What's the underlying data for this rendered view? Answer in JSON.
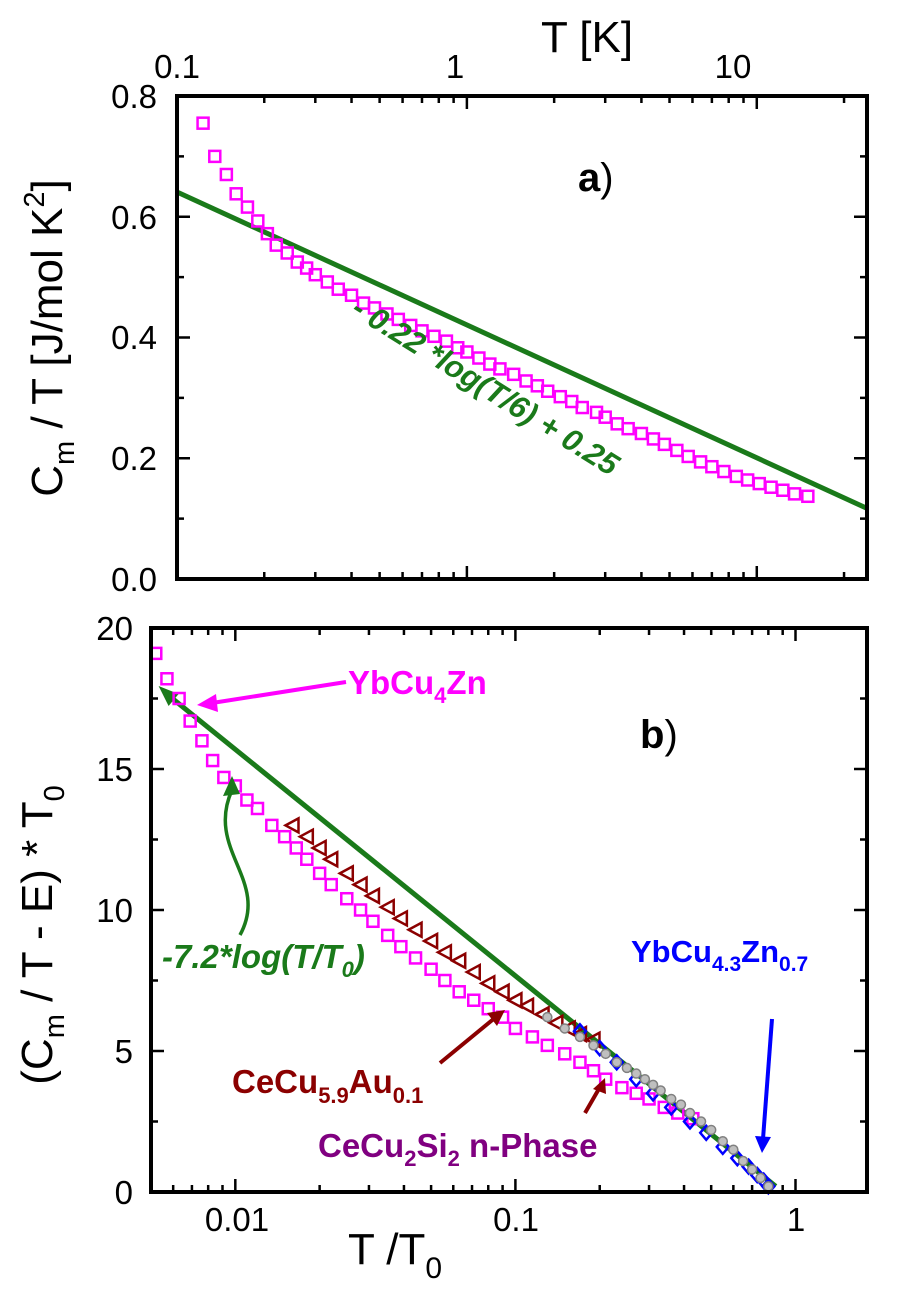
{
  "chart_data": [
    {
      "panel": "a",
      "type": "scatter",
      "panel_label": "a",
      "x_axis": {
        "label": "T [K]",
        "scale": "log",
        "range": [
          0.1,
          24
        ],
        "position": "top",
        "tick_labels": [
          "0.1",
          "1",
          "10"
        ],
        "ticks": [
          0.1,
          1,
          10
        ]
      },
      "y_axis": {
        "label_main": "C",
        "label_sub": "m",
        "label_rest": " / T [J/mol K",
        "label_sup": "2",
        "label_end": "]",
        "range": [
          0.0,
          0.8
        ],
        "ticks": [
          0.0,
          0.2,
          0.4,
          0.6,
          0.8
        ],
        "tick_labels": [
          "0.0",
          "0.2",
          "0.4",
          "0.6",
          "0.8"
        ]
      },
      "series": [
        {
          "name": "YbCu4Zn",
          "marker": "square",
          "color": "#ff00ff",
          "x": [
            0.123,
            0.135,
            0.148,
            0.16,
            0.175,
            0.19,
            0.205,
            0.22,
            0.24,
            0.26,
            0.28,
            0.3,
            0.33,
            0.36,
            0.4,
            0.44,
            0.48,
            0.53,
            0.58,
            0.64,
            0.7,
            0.77,
            0.85,
            0.93,
            1.0,
            1.1,
            1.2,
            1.3,
            1.45,
            1.6,
            1.75,
            1.9,
            2.1,
            2.3,
            2.5,
            2.8,
            3.0,
            3.3,
            3.6,
            4.0,
            4.4,
            4.8,
            5.3,
            5.8,
            6.4,
            7.0,
            7.7,
            8.5,
            9.3,
            10.2,
            11.2,
            12.3,
            13.5,
            15.0
          ],
          "y": [
            0.755,
            0.7,
            0.67,
            0.638,
            0.616,
            0.593,
            0.572,
            0.553,
            0.54,
            0.525,
            0.515,
            0.504,
            0.492,
            0.48,
            0.47,
            0.457,
            0.449,
            0.439,
            0.43,
            0.42,
            0.411,
            0.402,
            0.394,
            0.383,
            0.376,
            0.366,
            0.356,
            0.348,
            0.339,
            0.328,
            0.32,
            0.311,
            0.302,
            0.294,
            0.284,
            0.276,
            0.268,
            0.257,
            0.249,
            0.241,
            0.232,
            0.223,
            0.213,
            0.203,
            0.194,
            0.186,
            0.178,
            0.17,
            0.164,
            0.158,
            0.152,
            0.147,
            0.141,
            0.137
          ]
        }
      ],
      "fit": {
        "label": "- 0.22 *log(T/6) + 0.25",
        "color": "#1a7a1a",
        "x": [
          0.1,
          24
        ],
        "y": [
          0.641,
          0.117
        ]
      }
    },
    {
      "panel": "b",
      "type": "scatter",
      "panel_label": "b",
      "x_axis": {
        "label_main": "T /T",
        "label_sub": "0",
        "scale": "log",
        "range": [
          0.005,
          1.8
        ],
        "tick_labels": [
          "0.01",
          "0.1",
          "1"
        ],
        "ticks": [
          0.01,
          0.1,
          1
        ]
      },
      "y_axis": {
        "label_a": "(C",
        "label_a_sub": "m",
        "label_b": " / T - E) * T",
        "label_b_sub": "0",
        "range": [
          0,
          20
        ],
        "ticks": [
          0,
          5,
          10,
          15,
          20
        ],
        "tick_labels": [
          "0",
          "5",
          "10",
          "15",
          "20"
        ]
      },
      "series": [
        {
          "name": "YbCu4Zn",
          "label_main": "YbCu",
          "label_sub": "4",
          "label_end": "Zn",
          "marker": "square",
          "color": "#ff00ff",
          "x": [
            0.0052,
            0.0057,
            0.0063,
            0.0069,
            0.0076,
            0.0083,
            0.0091,
            0.01,
            0.011,
            0.012,
            0.0135,
            0.015,
            0.0165,
            0.018,
            0.02,
            0.022,
            0.025,
            0.028,
            0.031,
            0.035,
            0.039,
            0.044,
            0.05,
            0.056,
            0.063,
            0.071,
            0.08,
            0.09,
            0.1,
            0.115,
            0.13,
            0.15,
            0.17,
            0.19,
            0.21,
            0.24,
            0.27,
            0.3,
            0.34,
            0.38,
            0.43
          ],
          "y": [
            19.1,
            18.2,
            17.5,
            16.7,
            16.0,
            15.3,
            14.7,
            14.4,
            13.9,
            13.6,
            13.0,
            12.6,
            12.2,
            11.8,
            11.3,
            10.9,
            10.4,
            10.0,
            9.6,
            9.1,
            8.7,
            8.3,
            7.9,
            7.5,
            7.1,
            6.8,
            6.5,
            6.2,
            5.8,
            5.5,
            5.2,
            4.9,
            4.6,
            4.3,
            4.0,
            3.7,
            3.5,
            3.3,
            3.0,
            2.8,
            2.6
          ]
        },
        {
          "name": "CeCu5.9Au0.1",
          "label_main": "CeCu",
          "label_sub1": "5.9",
          "label_mid": "Au",
          "label_sub2": "0.1",
          "marker": "triangle-left",
          "color": "#8b0000",
          "x": [
            0.016,
            0.018,
            0.02,
            0.022,
            0.025,
            0.028,
            0.031,
            0.035,
            0.039,
            0.044,
            0.05,
            0.056,
            0.063,
            0.071,
            0.08,
            0.09,
            0.1,
            0.11,
            0.125,
            0.14,
            0.155,
            0.17,
            0.19
          ],
          "y": [
            13.0,
            12.6,
            12.2,
            11.8,
            11.3,
            10.9,
            10.5,
            10.1,
            9.7,
            9.3,
            8.9,
            8.5,
            8.2,
            7.8,
            7.4,
            7.1,
            6.8,
            6.6,
            6.3,
            6.0,
            5.8,
            5.6,
            5.4
          ]
        },
        {
          "name": "YbCu4.3Zn0.7",
          "label_main": "YbCu",
          "label_sub1": "4.3",
          "label_mid": "Zn",
          "label_sub2": "0.7",
          "marker": "diamond",
          "color": "#0000ff",
          "x": [
            0.17,
            0.2,
            0.23,
            0.27,
            0.31,
            0.36,
            0.42,
            0.48,
            0.55,
            0.62,
            0.68,
            0.73,
            0.77,
            0.8
          ],
          "y": [
            5.7,
            5.1,
            4.6,
            4.0,
            3.5,
            3.0,
            2.5,
            2.1,
            1.6,
            1.2,
            0.9,
            0.6,
            0.4,
            0.2
          ]
        },
        {
          "name": "CeCu2Si2 n-Phase",
          "label_main": "CeCu",
          "label_sub1": "2",
          "label_mid": "Si",
          "label_sub2": "2",
          "label_end": " n-Phase",
          "marker": "circle",
          "color": "#808080",
          "x": [
            0.13,
            0.15,
            0.17,
            0.19,
            0.21,
            0.23,
            0.25,
            0.27,
            0.29,
            0.31,
            0.33,
            0.36,
            0.39,
            0.42,
            0.46,
            0.5,
            0.55,
            0.6,
            0.65,
            0.7,
            0.75,
            0.8
          ],
          "y": [
            6.2,
            5.8,
            5.5,
            5.2,
            4.9,
            4.6,
            4.4,
            4.2,
            4.0,
            3.8,
            3.6,
            3.3,
            3.1,
            2.8,
            2.5,
            2.2,
            1.8,
            1.5,
            1.1,
            0.8,
            0.5,
            0.2
          ]
        }
      ],
      "fit": {
        "label_main": "-7.2*log(T/T",
        "label_sub": "0",
        "label_end": ")",
        "color": "#1a7a1a",
        "x": [
          0.0055,
          0.85
        ],
        "y": [
          17.8,
          0.2
        ]
      }
    }
  ]
}
